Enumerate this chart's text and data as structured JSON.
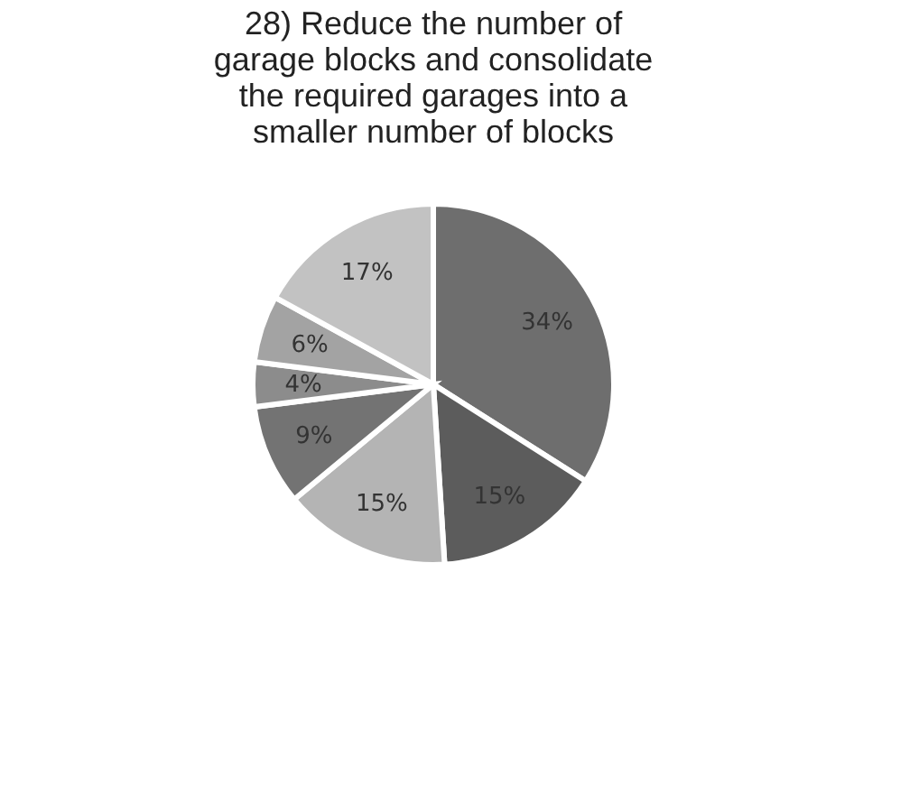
{
  "chart_data": {
    "type": "pie",
    "title": "28) Reduce the number of garage blocks and consolidate the required garages into a smaller number of blocks",
    "categories": [
      null,
      null,
      null,
      null,
      null,
      null,
      null
    ],
    "values": [
      34,
      15,
      15,
      9,
      4,
      6,
      17
    ],
    "value_labels": [
      "34%",
      "15%",
      "15%",
      "9%",
      "4%",
      "6%",
      "17%"
    ],
    "colors": [
      "#6e6e6e",
      "#5c5c5c",
      "#b4b4b4",
      "#737373",
      "#8c8c8c",
      "#a3a3a3",
      "#c2c2c2"
    ]
  }
}
